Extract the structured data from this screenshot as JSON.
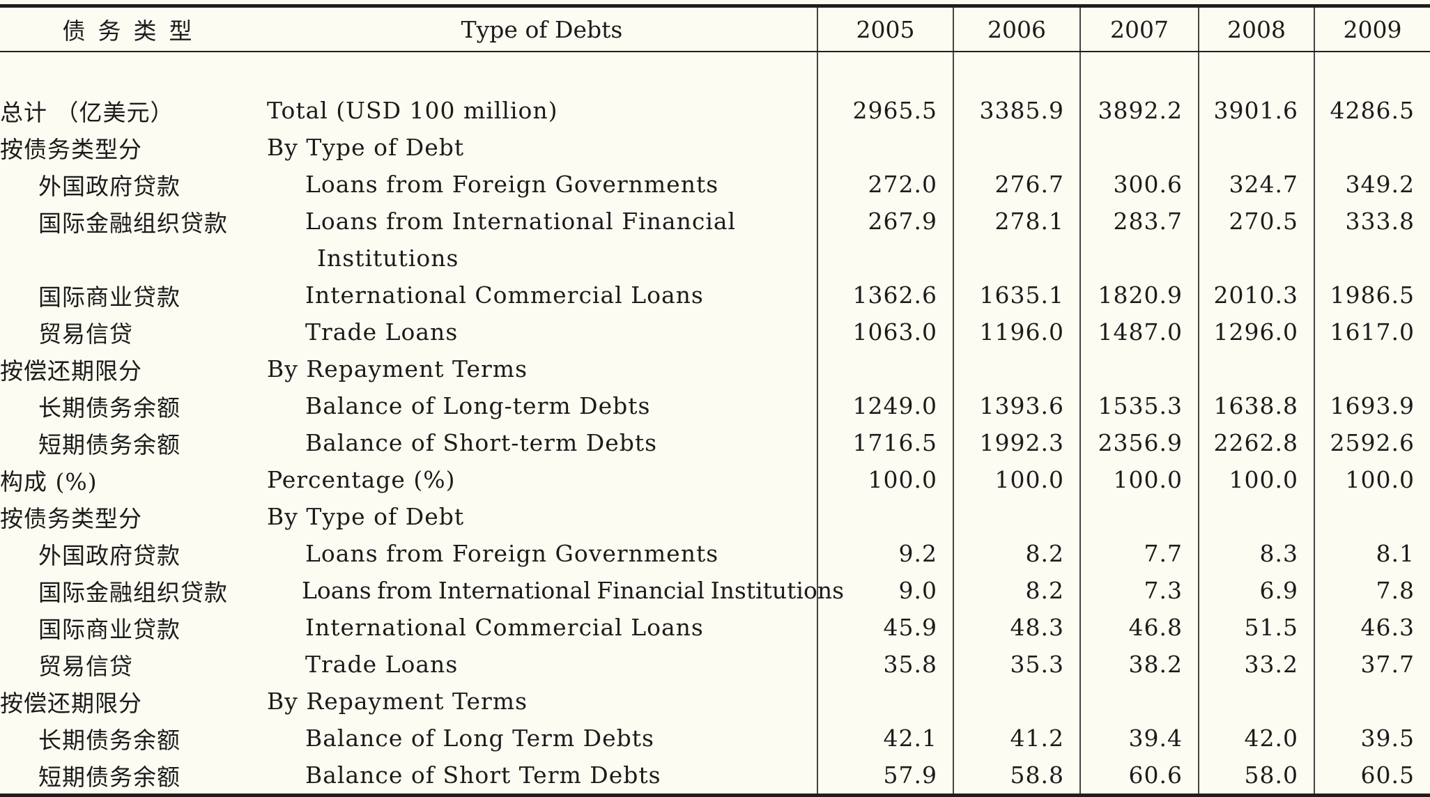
{
  "header": {
    "type_zh": "债务类型",
    "type_en": "Type of Debts",
    "years": [
      "2005",
      "2006",
      "2007",
      "2008",
      "2009"
    ]
  },
  "rows": [
    {
      "zh": "总计 （亿美元）",
      "en": "Total (USD 100 million)",
      "values": [
        "2965.5",
        "3385.9",
        "3892.2",
        "3901.6",
        "4286.5"
      ]
    },
    {
      "zh": "按债务类型分",
      "en": "By Type of Debt",
      "values": [
        "",
        "",
        "",
        "",
        ""
      ]
    },
    {
      "zh": "外国政府贷款",
      "en": "Loans from Foreign Governments",
      "values": [
        "272.0",
        "276.7",
        "300.6",
        "324.7",
        "349.2"
      ]
    },
    {
      "zh": "国际金融组织贷款",
      "en": "Loans from International Financial",
      "values": [
        "267.9",
        "278.1",
        "283.7",
        "270.5",
        "333.8"
      ]
    },
    {
      "zh": "",
      "en": "Institutions",
      "values": [
        "",
        "",
        "",
        "",
        ""
      ]
    },
    {
      "zh": "国际商业贷款",
      "en": "International Commercial Loans",
      "values": [
        "1362.6",
        "1635.1",
        "1820.9",
        "2010.3",
        "1986.5"
      ]
    },
    {
      "zh": "贸易信贷",
      "en": "Trade Loans",
      "values": [
        "1063.0",
        "1196.0",
        "1487.0",
        "1296.0",
        "1617.0"
      ]
    },
    {
      "zh": "按偿还期限分",
      "en": "By Repayment Terms",
      "values": [
        "",
        "",
        "",
        "",
        ""
      ]
    },
    {
      "zh": "长期债务余额",
      "en": "Balance of Long-term Debts",
      "values": [
        "1249.0",
        "1393.6",
        "1535.3",
        "1638.8",
        "1693.9"
      ]
    },
    {
      "zh": "短期债务余额",
      "en": "Balance of Short-term Debts",
      "values": [
        "1716.5",
        "1992.3",
        "2356.9",
        "2262.8",
        "2592.6"
      ]
    },
    {
      "zh": "构成 (%)",
      "en": "Percentage (%)",
      "values": [
        "100.0",
        "100.0",
        "100.0",
        "100.0",
        "100.0"
      ]
    },
    {
      "zh": "按债务类型分",
      "en": "By Type of Debt",
      "values": [
        "",
        "",
        "",
        "",
        ""
      ]
    },
    {
      "zh": "外国政府贷款",
      "en": "Loans from Foreign Governments",
      "values": [
        "9.2",
        "8.2",
        "7.7",
        "8.3",
        "8.1"
      ]
    },
    {
      "zh": "国际金融组织贷款",
      "en": "Loans from International Financial Institutions",
      "values": [
        "9.0",
        "8.2",
        "7.3",
        "6.9",
        "7.8"
      ]
    },
    {
      "zh": "国际商业贷款",
      "en": "International Commercial Loans",
      "values": [
        "45.9",
        "48.3",
        "46.8",
        "51.5",
        "46.3"
      ]
    },
    {
      "zh": "贸易信贷",
      "en": "Trade Loans",
      "values": [
        "35.8",
        "35.3",
        "38.2",
        "33.2",
        "37.7"
      ]
    },
    {
      "zh": "按偿还期限分",
      "en": "By Repayment Terms",
      "values": [
        "",
        "",
        "",
        "",
        ""
      ]
    },
    {
      "zh": "长期债务余额",
      "en": "Balance of Long Term Debts",
      "values": [
        "42.1",
        "41.2",
        "39.4",
        "42.0",
        "39.5"
      ]
    },
    {
      "zh": "短期债务余额",
      "en": "Balance of Short Term Debts",
      "values": [
        "57.9",
        "58.8",
        "60.6",
        "58.0",
        "60.5"
      ]
    }
  ]
}
